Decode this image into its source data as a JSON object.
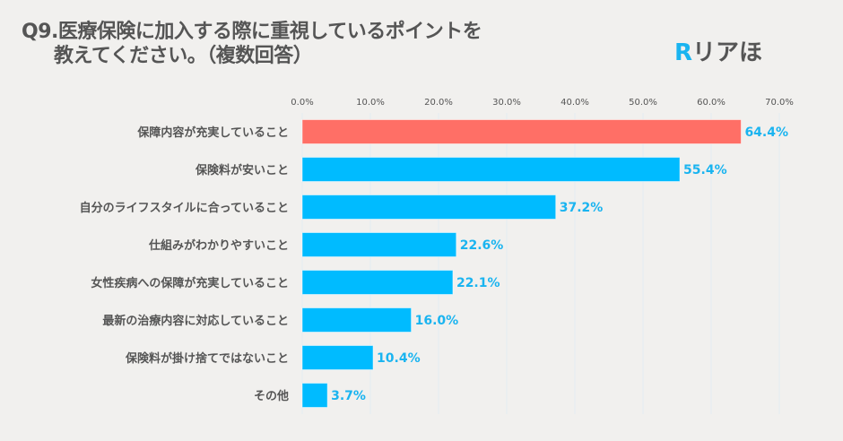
{
  "title_line1": "Q9.医療保険に加入する際に重視しているポイントを",
  "title_line2": "教えてください。（複数回答）",
  "logo": {
    "mark": "R",
    "text": "リアほ"
  },
  "colors": {
    "highlight": "#ff6f66",
    "bar": "#00bbff",
    "label": "#1ab4f0",
    "background": "#f1f0ee"
  },
  "chart_data": {
    "type": "bar",
    "orientation": "horizontal",
    "categories": [
      "保障内容が充実していること",
      "保険料が安いこと",
      "自分のライフスタイルに合っていること",
      "仕組みがわかりやすいこと",
      "女性疾病への保障が充実していること",
      "最新の治療内容に対応していること",
      "保険料が掛け捨てではないこと",
      "その他"
    ],
    "values": [
      64.4,
      55.4,
      37.2,
      22.6,
      22.1,
      16.0,
      10.4,
      3.7
    ],
    "data_labels": [
      "64.4%",
      "55.4%",
      "37.2%",
      "22.6%",
      "22.1%",
      "16.0%",
      "10.4%",
      "3.7%"
    ],
    "xlim": [
      0,
      70
    ],
    "ticks": [
      "0.0%",
      "10.0%",
      "20.0%",
      "30.0%",
      "40.0%",
      "50.0%",
      "60.0%",
      "70.0%"
    ],
    "grid": true,
    "highlighted_index": 0
  }
}
